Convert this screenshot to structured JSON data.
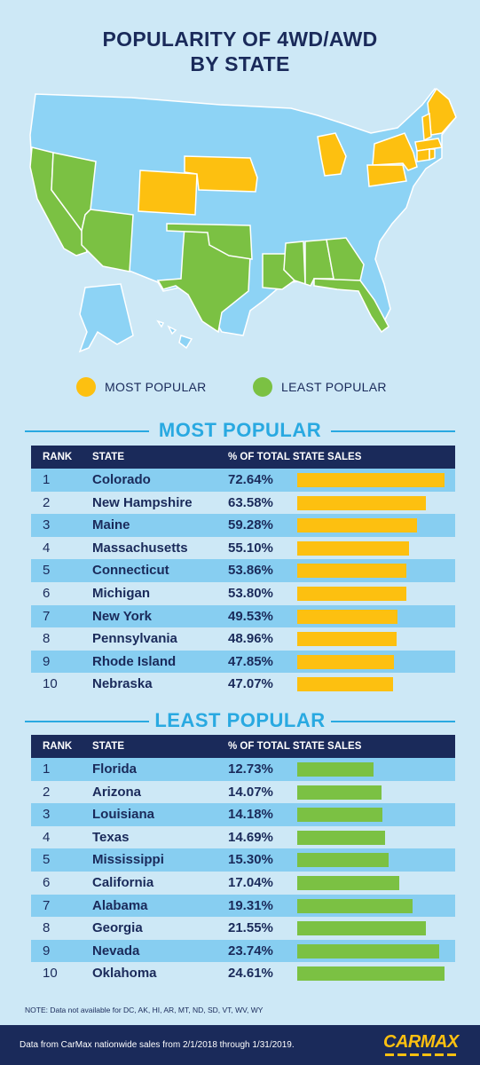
{
  "title": {
    "line1": "POPULARITY OF 4WD/AWD",
    "line2": "BY STATE"
  },
  "colors": {
    "most": "#fdc010",
    "least": "#7bc143",
    "neutral": "#8dd3f5",
    "navy": "#1a2a5a",
    "accent": "#29a9e1"
  },
  "legend": {
    "most_label": "MOST POPULAR",
    "least_label": "LEAST POPULAR"
  },
  "sections": {
    "most_title": "MOST POPULAR",
    "least_title": "LEAST POPULAR"
  },
  "table_headers": {
    "rank": "RANK",
    "state": "STATE",
    "pct": "% OF TOTAL STATE SALES"
  },
  "chart_data": [
    {
      "type": "bar",
      "title": "MOST POPULAR",
      "columns": [
        "RANK",
        "STATE",
        "% OF TOTAL STATE SALES"
      ],
      "rows": [
        {
          "rank": "1",
          "state": "Colorado",
          "pct_label": "72.64%",
          "value": 72.64
        },
        {
          "rank": "2",
          "state": "New Hampshire",
          "pct_label": "63.58%",
          "value": 63.58
        },
        {
          "rank": "3",
          "state": "Maine",
          "pct_label": "59.28%",
          "value": 59.28
        },
        {
          "rank": "4",
          "state": "Massachusetts",
          "pct_label": "55.10%",
          "value": 55.1
        },
        {
          "rank": "5",
          "state": "Connecticut",
          "pct_label": "53.86%",
          "value": 53.86
        },
        {
          "rank": "6",
          "state": "Michigan",
          "pct_label": "53.80%",
          "value": 53.8
        },
        {
          "rank": "7",
          "state": "New York",
          "pct_label": "49.53%",
          "value": 49.53
        },
        {
          "rank": "8",
          "state": "Pennsylvania",
          "pct_label": "48.96%",
          "value": 48.96
        },
        {
          "rank": "9",
          "state": "Rhode Island",
          "pct_label": "47.85%",
          "value": 47.85
        },
        {
          "rank": "10",
          "state": "Nebraska",
          "pct_label": "47.07%",
          "value": 47.07
        }
      ]
    },
    {
      "type": "bar",
      "title": "LEAST POPULAR",
      "columns": [
        "RANK",
        "STATE",
        "% OF TOTAL STATE SALES"
      ],
      "rows": [
        {
          "rank": "1",
          "state": "Florida",
          "pct_label": "12.73%",
          "value": 12.73
        },
        {
          "rank": "2",
          "state": "Arizona",
          "pct_label": "14.07%",
          "value": 14.07
        },
        {
          "rank": "3",
          "state": "Louisiana",
          "pct_label": "14.18%",
          "value": 14.18
        },
        {
          "rank": "4",
          "state": "Texas",
          "pct_label": "14.69%",
          "value": 14.69
        },
        {
          "rank": "5",
          "state": "Mississippi",
          "pct_label": "15.30%",
          "value": 15.3
        },
        {
          "rank": "6",
          "state": "California",
          "pct_label": "17.04%",
          "value": 17.04
        },
        {
          "rank": "7",
          "state": "Alabama",
          "pct_label": "19.31%",
          "value": 19.31
        },
        {
          "rank": "8",
          "state": "Georgia",
          "pct_label": "21.55%",
          "value": 21.55
        },
        {
          "rank": "9",
          "state": "Nevada",
          "pct_label": "23.74%",
          "value": 23.74
        },
        {
          "rank": "10",
          "state": "Oklahoma",
          "pct_label": "24.61%",
          "value": 24.61
        }
      ]
    }
  ],
  "note": "NOTE: Data not available for DC, AK, HI, AR, MT, ND, SD, VT, WV, WY",
  "footer": {
    "source": "Data from CarMax nationwide sales from 2/1/2018 through 1/31/2019.",
    "logo_text": "CARMAX"
  }
}
